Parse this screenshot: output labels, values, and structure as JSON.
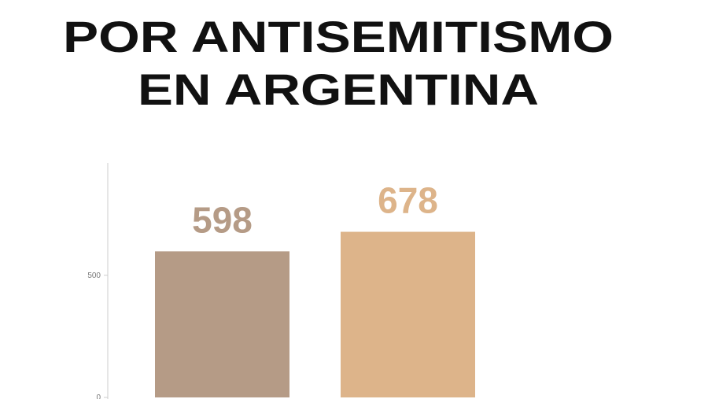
{
  "chart_data": {
    "type": "bar",
    "title": [
      "POR ANTISEMITISMO",
      "EN ARGENTINA"
    ],
    "categories": [
      null,
      null
    ],
    "values": [
      598,
      678
    ],
    "colors": [
      "#b59b86",
      "#ddb48a"
    ],
    "ylim": [
      0,
      960
    ],
    "yticks": [
      0,
      500
    ]
  }
}
